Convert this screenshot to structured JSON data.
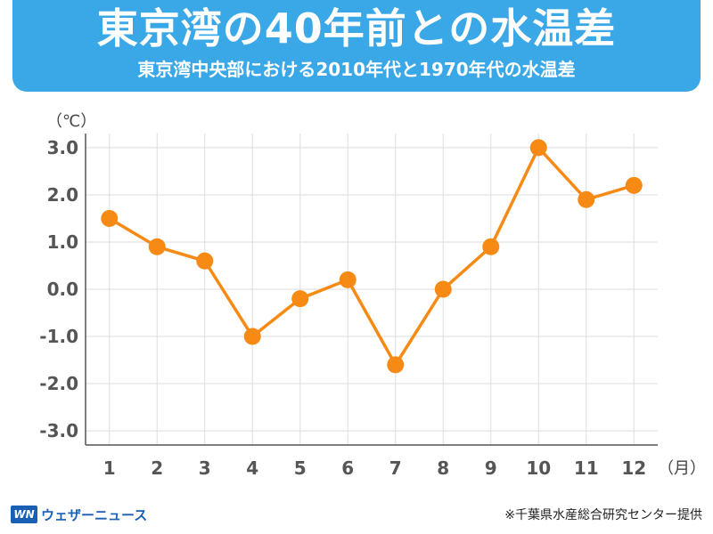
{
  "header": {
    "title": "東京湾の40年前との水温差",
    "subtitle": "東京湾中央部における2010年代と1970年代の水温差"
  },
  "chart_data": {
    "type": "line",
    "title": "東京湾の40年前との水温差",
    "subtitle": "東京湾中央部における2010年代と1970年代の水温差",
    "ylabel": "（℃）",
    "xlabel": "（月）",
    "x": [
      1,
      2,
      3,
      4,
      5,
      6,
      7,
      8,
      9,
      10,
      11,
      12
    ],
    "x_tick_labels": [
      "1",
      "2",
      "3",
      "4",
      "5",
      "6",
      "7",
      "8",
      "9",
      "10",
      "11",
      "12"
    ],
    "y_tick_labels": [
      "3.0",
      "2.0",
      "1.0",
      "0.0",
      "-1.0",
      "-2.0",
      "-3.0"
    ],
    "y_ticks": [
      3,
      2,
      1,
      0,
      -1,
      -2,
      -3
    ],
    "ylim": [
      -3.3,
      3.3
    ],
    "series": [
      {
        "values": [
          1.5,
          0.9,
          0.6,
          -1.0,
          -0.2,
          0.2,
          -1.6,
          0.0,
          0.9,
          3.0,
          1.9,
          2.2
        ]
      }
    ],
    "grid": true,
    "line_color": "#f78a14"
  },
  "footer": {
    "logo_mark": "WN",
    "logo_text": "ウェザーニュース",
    "credit": "※千葉県水産総合研究センター提供"
  }
}
